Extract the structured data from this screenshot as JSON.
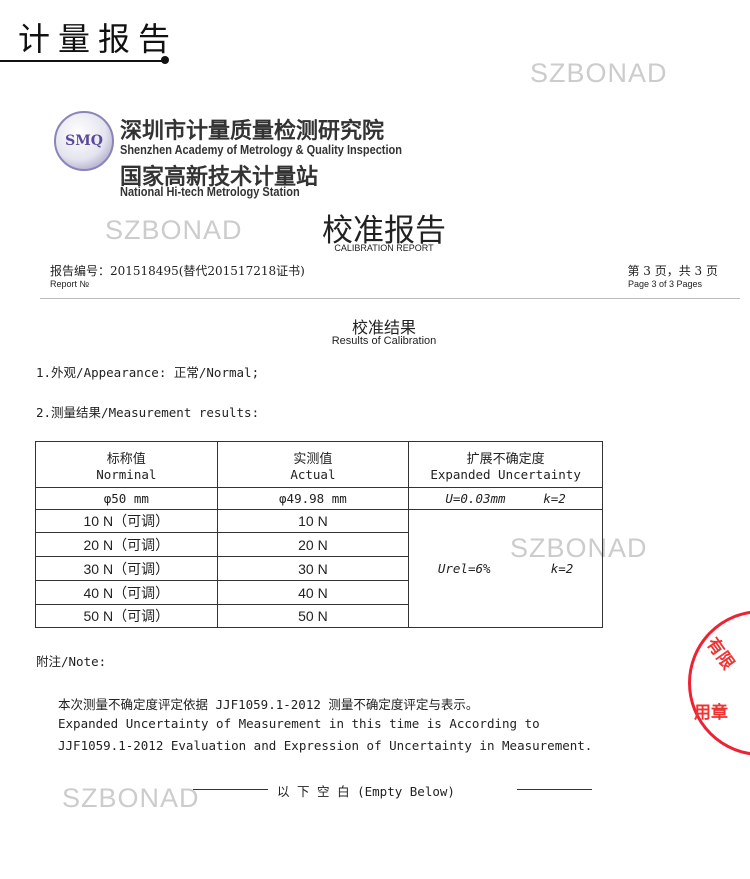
{
  "header": {
    "handwritten_title": "计量报告"
  },
  "watermarks": [
    "SZBONAD",
    "SZBONAD",
    "SZBONAD",
    "SZBONAD"
  ],
  "institute": {
    "logo_text": "SMQ",
    "name_cn": "深圳市计量质量检测研究院",
    "name_en": "Shenzhen Academy of Metrology & Quality Inspection",
    "station_cn": "国家高新技术计量站",
    "station_en": "National Hi-tech Metrology Station"
  },
  "report": {
    "title_cn": "校准报告",
    "title_en": "CALIBRATION REPORT",
    "number_label_cn": "报告编号：201518495(替代201517218证书)",
    "number_label_en": "Report №",
    "page_cn": "第 3 页，共 3 页",
    "page_en": "Page 3 of 3 Pages"
  },
  "results": {
    "title_cn": "校准结果",
    "title_en": "Results of Calibration",
    "appearance": "1.外观/Appearance: 正常/Normal;",
    "measurement_label": "2.测量结果/Measurement results:",
    "table": {
      "headers": [
        {
          "cn": "标称值",
          "en": "Norminal"
        },
        {
          "cn": "实测值",
          "en": "Actual"
        },
        {
          "cn": "扩展不确定度",
          "en": "Expanded Uncertainty"
        }
      ],
      "diameter_row": {
        "nominal": "φ50  mm",
        "actual": "φ49.98  mm",
        "u": "U=0.03mm",
        "k": "k=2"
      },
      "force_rows": [
        {
          "nominal": "10 N（可调）",
          "actual": "10 N"
        },
        {
          "nominal": "20 N（可调）",
          "actual": "20 N"
        },
        {
          "nominal": "30 N（可调）",
          "actual": "30 N"
        },
        {
          "nominal": "40 N（可调）",
          "actual": "40 N"
        },
        {
          "nominal": "50 N（可调）",
          "actual": "50 N"
        }
      ],
      "force_uncertainty": {
        "u": "Urel=6%",
        "k": "k=2"
      }
    }
  },
  "notes": {
    "label": "附注/Note:",
    "lines": [
      "本次测量不确定度评定依据 JJF1059.1-2012 测量不确定度评定与表示。",
      "Expanded Uncertainty of Measurement in this time is  According to",
      "JJF1059.1-2012 Evaluation and Expression of Uncertainty in Measurement."
    ],
    "end_marker": "以  下  空  白 (Empty Below)"
  },
  "stamp": {
    "color": "#e23333",
    "partial_text": "有限公司 专用章"
  }
}
